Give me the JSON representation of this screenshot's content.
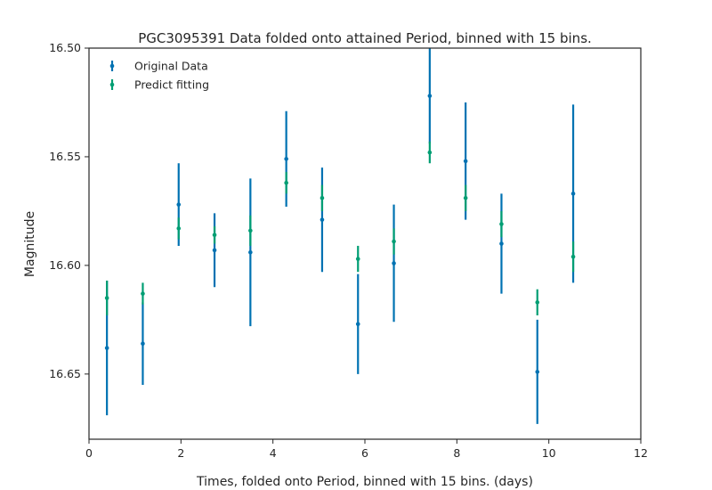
{
  "chart_data": {
    "type": "errorbar",
    "title": "PGC3095391 Data folded onto attained Period, binned with 15 bins.",
    "xlabel": "Times, folded onto Period, binned with 15 bins. (days)",
    "ylabel": "Magnitude",
    "xlim": [
      0,
      12
    ],
    "ylim": [
      16.68,
      16.5
    ],
    "y_inverted": true,
    "x_ticks": [
      "0",
      "2",
      "4",
      "6",
      "8",
      "10",
      "12"
    ],
    "y_ticks": [
      "16.50",
      "16.55",
      "16.60",
      "16.65"
    ],
    "grid": false,
    "legend_position": "upper-left",
    "series": [
      {
        "name": "Original Data",
        "color": "#0072b2",
        "points": [
          {
            "x": 0.39,
            "y": 16.638,
            "err": 0.031
          },
          {
            "x": 1.17,
            "y": 16.636,
            "err": 0.019
          },
          {
            "x": 1.95,
            "y": 16.572,
            "err": 0.019
          },
          {
            "x": 2.73,
            "y": 16.593,
            "err": 0.017
          },
          {
            "x": 3.51,
            "y": 16.594,
            "err": 0.034
          },
          {
            "x": 4.29,
            "y": 16.551,
            "err": 0.022
          },
          {
            "x": 5.07,
            "y": 16.579,
            "err": 0.024
          },
          {
            "x": 5.85,
            "y": 16.627,
            "err": 0.023
          },
          {
            "x": 6.63,
            "y": 16.599,
            "err": 0.027
          },
          {
            "x": 7.41,
            "y": 16.522,
            "err": 0.022
          },
          {
            "x": 8.19,
            "y": 16.552,
            "err": 0.027
          },
          {
            "x": 8.97,
            "y": 16.59,
            "err": 0.023
          },
          {
            "x": 9.75,
            "y": 16.649,
            "err": 0.024
          },
          {
            "x": 10.53,
            "y": 16.567,
            "err": 0.041
          }
        ]
      },
      {
        "name": "Predict fitting",
        "color": "#009e73",
        "points": [
          {
            "x": 0.39,
            "y": 16.615,
            "err": 0.008
          },
          {
            "x": 1.17,
            "y": 16.613,
            "err": 0.005
          },
          {
            "x": 1.95,
            "y": 16.583,
            "err": 0.005
          },
          {
            "x": 2.73,
            "y": 16.586,
            "err": 0.004
          },
          {
            "x": 3.51,
            "y": 16.584,
            "err": 0.007
          },
          {
            "x": 4.29,
            "y": 16.562,
            "err": 0.005
          },
          {
            "x": 5.07,
            "y": 16.569,
            "err": 0.006
          },
          {
            "x": 5.85,
            "y": 16.597,
            "err": 0.006
          },
          {
            "x": 6.63,
            "y": 16.589,
            "err": 0.006
          },
          {
            "x": 7.41,
            "y": 16.548,
            "err": 0.005
          },
          {
            "x": 8.19,
            "y": 16.569,
            "err": 0.006
          },
          {
            "x": 8.97,
            "y": 16.581,
            "err": 0.006
          },
          {
            "x": 9.75,
            "y": 16.617,
            "err": 0.006
          },
          {
            "x": 10.53,
            "y": 16.596,
            "err": 0.007
          }
        ]
      }
    ]
  }
}
